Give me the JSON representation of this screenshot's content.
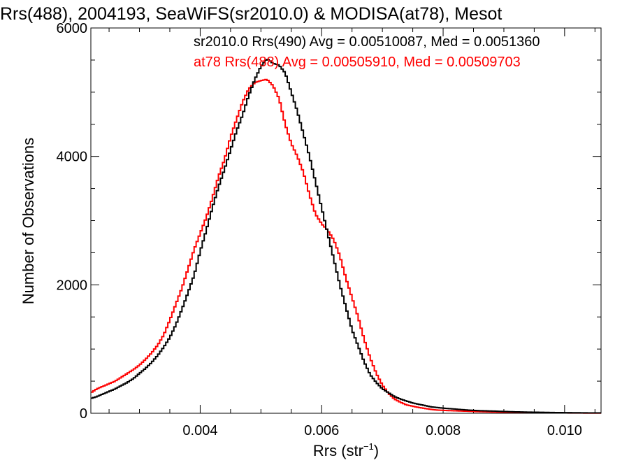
{
  "chart_data": {
    "type": "line",
    "title": "Rrs(488), 2004193, SeaWiFS(sr2010.0) & MODISA(at78), Mesot",
    "xlabel_main": "Rrs (str",
    "xlabel_sup": "−1",
    "xlabel_close": ")",
    "ylabel": "Number of Observations",
    "xlim": [
      0.0022,
      0.0106
    ],
    "ylim": [
      0,
      6000
    ],
    "x_ticks": [
      0.004,
      0.006,
      0.008,
      0.01
    ],
    "x_tick_labels": [
      "0.004",
      "0.006",
      "0.008",
      "0.010"
    ],
    "y_ticks": [
      0,
      2000,
      4000,
      6000
    ],
    "y_tick_labels": [
      "0",
      "2000",
      "4000",
      "6000"
    ],
    "grid": false,
    "legend_position": "top-right",
    "series": [
      {
        "name": "sr2010.0 Rrs(490) Avg = 0.00510087, Med = 0.0051360",
        "color": "#000000",
        "x": [
          0.0022,
          0.0023,
          0.0024,
          0.0025,
          0.0026,
          0.0027,
          0.0028,
          0.0029,
          0.003,
          0.0031,
          0.0032,
          0.0033,
          0.0034,
          0.0035,
          0.0036,
          0.0037,
          0.0038,
          0.0039,
          0.004,
          0.0041,
          0.0042,
          0.0043,
          0.0044,
          0.0045,
          0.0046,
          0.0047,
          0.0048,
          0.0049,
          0.005,
          0.0051,
          0.0052,
          0.0053,
          0.0054,
          0.0055,
          0.0056,
          0.0057,
          0.0058,
          0.0059,
          0.006,
          0.0061,
          0.0062,
          0.0063,
          0.0064,
          0.0065,
          0.0066,
          0.0067,
          0.0068,
          0.0069,
          0.007,
          0.0071,
          0.0072,
          0.0073,
          0.0074,
          0.0075,
          0.0076,
          0.0077,
          0.0078,
          0.0079,
          0.008,
          0.0082,
          0.0084,
          0.0086,
          0.0088,
          0.009,
          0.0092,
          0.0094,
          0.0096,
          0.0098,
          0.01,
          0.0102,
          0.0104,
          0.0106
        ],
        "y": [
          230,
          260,
          300,
          340,
          380,
          430,
          480,
          540,
          620,
          700,
          790,
          900,
          1030,
          1180,
          1380,
          1620,
          1880,
          2150,
          2520,
          2850,
          3200,
          3520,
          3800,
          4100,
          4400,
          4650,
          4950,
          5200,
          5400,
          5520,
          5450,
          5420,
          5300,
          5000,
          4700,
          4350,
          4000,
          3600,
          3200,
          2800,
          2400,
          2000,
          1650,
          1300,
          1050,
          800,
          600,
          480,
          380,
          320,
          260,
          220,
          190,
          160,
          140,
          120,
          100,
          90,
          80,
          65,
          50,
          40,
          35,
          28,
          22,
          18,
          15,
          12,
          10,
          8,
          6,
          5
        ]
      },
      {
        "name": "at78 Rrs(488) Avg = 0.00505910, Med = 0.00509703",
        "color": "#ff0000",
        "x": [
          0.0022,
          0.0023,
          0.0024,
          0.0025,
          0.0026,
          0.0027,
          0.0028,
          0.0029,
          0.003,
          0.0031,
          0.0032,
          0.0033,
          0.0034,
          0.0035,
          0.0036,
          0.0037,
          0.0038,
          0.0039,
          0.004,
          0.0041,
          0.0042,
          0.0043,
          0.0044,
          0.0045,
          0.0046,
          0.0047,
          0.0048,
          0.0049,
          0.005,
          0.0051,
          0.0052,
          0.0053,
          0.0054,
          0.0055,
          0.0056,
          0.0057,
          0.0058,
          0.0059,
          0.006,
          0.0061,
          0.0062,
          0.0063,
          0.0064,
          0.0065,
          0.0066,
          0.0067,
          0.0068,
          0.0069,
          0.007,
          0.0071,
          0.0072,
          0.0073,
          0.0074,
          0.0075,
          0.0076,
          0.0077,
          0.0078,
          0.0079,
          0.008,
          0.0082,
          0.0084,
          0.0086,
          0.0088,
          0.009,
          0.0092,
          0.0094,
          0.0096,
          0.0098,
          0.01,
          0.0102,
          0.0104,
          0.0106
        ],
        "y": [
          320,
          380,
          420,
          460,
          500,
          560,
          620,
          680,
          750,
          840,
          940,
          1060,
          1220,
          1450,
          1700,
          1950,
          2250,
          2550,
          2800,
          3050,
          3350,
          3680,
          3950,
          4300,
          4580,
          4850,
          5050,
          5150,
          5180,
          5200,
          5100,
          4900,
          4500,
          4200,
          4000,
          3750,
          3400,
          3100,
          2950,
          2850,
          2700,
          2450,
          2100,
          1800,
          1500,
          1150,
          860,
          620,
          440,
          310,
          220,
          170,
          130,
          110,
          90,
          75,
          60,
          50,
          45,
          38,
          32,
          25,
          20,
          16,
          12,
          10,
          8,
          6,
          5,
          4,
          3,
          2
        ]
      }
    ]
  }
}
